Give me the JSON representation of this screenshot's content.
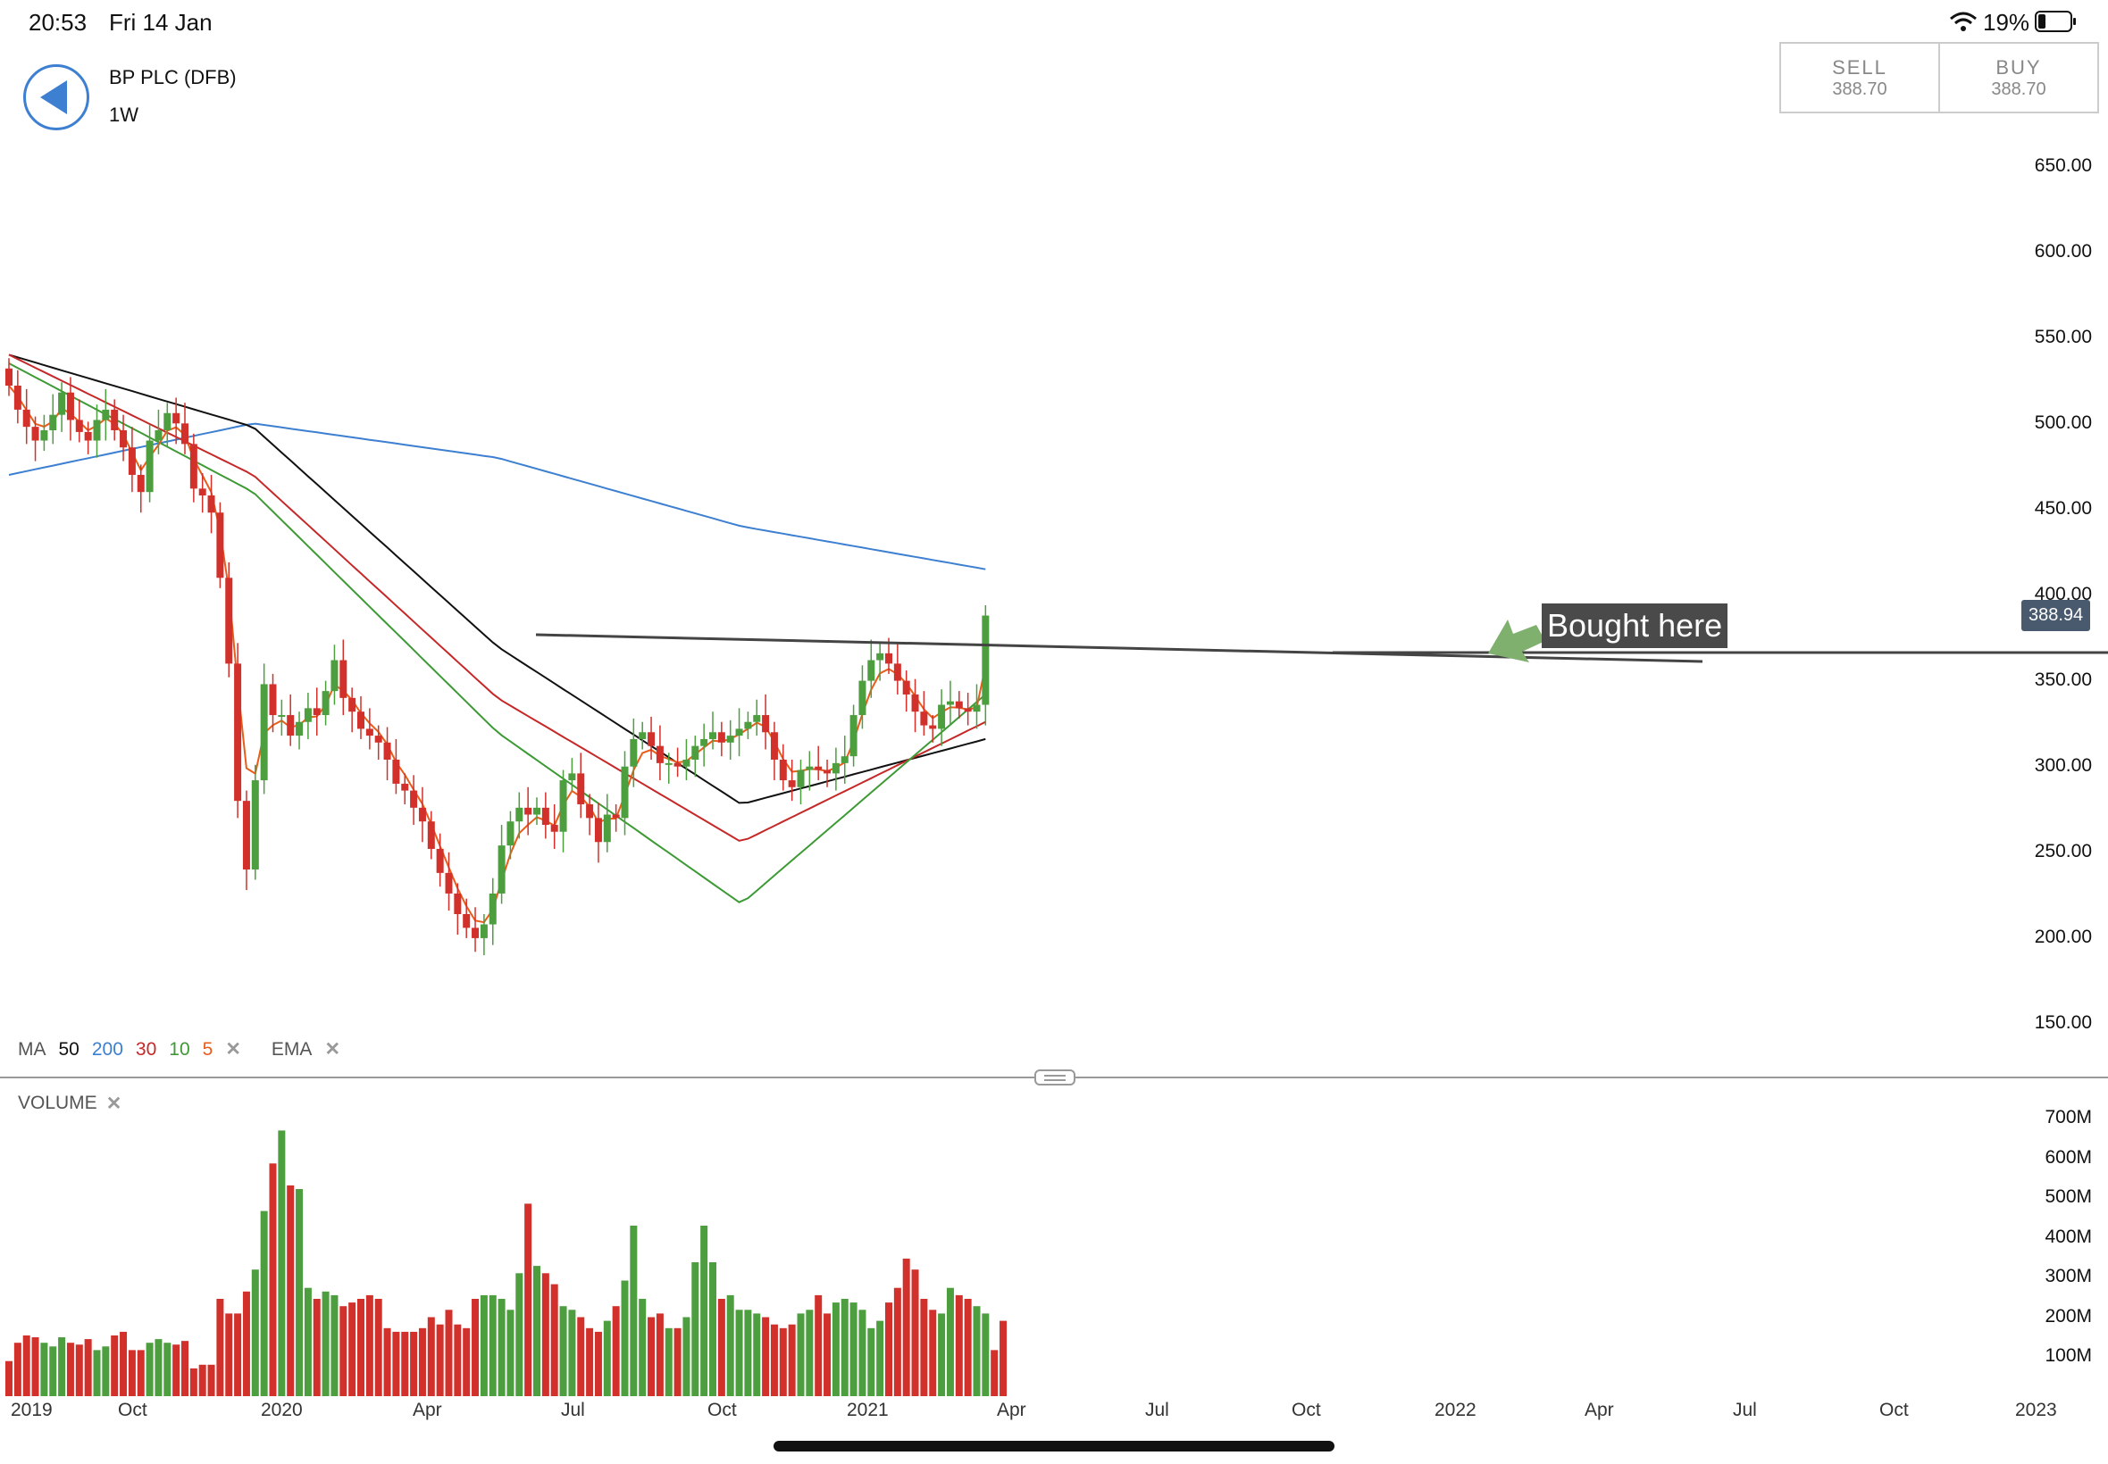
{
  "status": {
    "time": "20:53",
    "date": "Fri 14 Jan",
    "battery": "19%"
  },
  "header": {
    "instrument": "BP PLC (DFB)",
    "timeframe": "1W",
    "back_icon": "back-arrow-icon"
  },
  "trade": {
    "sell_label": "SELL",
    "sell_price": "388.70",
    "buy_label": "BUY",
    "buy_price": "388.70"
  },
  "price_axis": [
    "650.00",
    "600.00",
    "550.00",
    "500.00",
    "450.00",
    "400.00",
    "350.00",
    "300.00",
    "250.00",
    "200.00",
    "150.00"
  ],
  "current_price": "388.94",
  "annotation": "Bought here",
  "legend": {
    "ma": "MA",
    "ma_periods": [
      "50",
      "200",
      "30",
      "10",
      "5"
    ],
    "ema": "EMA"
  },
  "volume_label": "VOLUME",
  "volume_axis": [
    "700M",
    "600M",
    "500M",
    "400M",
    "300M",
    "200M",
    "100M"
  ],
  "x_axis": [
    "2019",
    "Oct",
    "2020",
    "Apr",
    "Jul",
    "Oct",
    "2021",
    "Apr",
    "Jul",
    "Oct",
    "2022",
    "Apr",
    "Jul",
    "Oct",
    "2023"
  ],
  "colors": {
    "up": "#4c9e3f",
    "down": "#d2302b",
    "ma50": "#111111",
    "ma200": "#3d7fd0",
    "ma30": "#c62828",
    "ma10": "#3d9a35",
    "ma5": "#e85d1a"
  },
  "chart_data": {
    "type": "candlestick",
    "close_prices": [
      522,
      508,
      498,
      490,
      496,
      505,
      518,
      502,
      495,
      490,
      502,
      508,
      496,
      486,
      470,
      460,
      490,
      496,
      506,
      500,
      488,
      462,
      458,
      448,
      410,
      360,
      280,
      240,
      292,
      348,
      330,
      330,
      318,
      326,
      334,
      330,
      344,
      362,
      340,
      332,
      322,
      318,
      314,
      304,
      290,
      286,
      276,
      268,
      252,
      238,
      226,
      214,
      206,
      200,
      208,
      226,
      254,
      268,
      276,
      272,
      276,
      266,
      262,
      292,
      296,
      278,
      270,
      256,
      272,
      270,
      300,
      316,
      320,
      312,
      302,
      302,
      300,
      304,
      312,
      316,
      320,
      314,
      318,
      322,
      326,
      330,
      320,
      304,
      292,
      288,
      298,
      300,
      298,
      296,
      302,
      306,
      330,
      350,
      362,
      366,
      360,
      350,
      342,
      332,
      324,
      322,
      336,
      338,
      334,
      332,
      336,
      388
    ],
    "ma_series": [
      {
        "name": "200",
        "values": [
          470,
          500,
          480,
          440,
          415
        ]
      },
      {
        "name": "50",
        "values": [
          540,
          498,
          370,
          278,
          316
        ]
      },
      {
        "name": "30",
        "values": [
          540,
          470,
          340,
          256,
          326
        ]
      },
      {
        "name": "10",
        "values": [
          535,
          460,
          320,
          220,
          342
        ]
      }
    ],
    "volume_millions": [
      30,
      80,
      100,
      95,
      80,
      70,
      95,
      80,
      75,
      90,
      60,
      70,
      100,
      110,
      60,
      60,
      80,
      90,
      80,
      75,
      85,
      10,
      20,
      20,
      200,
      160,
      160,
      220,
      280,
      440,
      570,
      660,
      510,
      500,
      230,
      200,
      220,
      210,
      180,
      190,
      200,
      210,
      200,
      120,
      110,
      110,
      110,
      120,
      150,
      130,
      170,
      130,
      120,
      200,
      210,
      210,
      200,
      170,
      270,
      460,
      290,
      270,
      240,
      180,
      170,
      150,
      120,
      110,
      140,
      180,
      250,
      400,
      200,
      150,
      160,
      120,
      120,
      150,
      300,
      400,
      300,
      200,
      210,
      170,
      170,
      160,
      150,
      130,
      120,
      130,
      160,
      170,
      210,
      160,
      190,
      200,
      190,
      170,
      120,
      140,
      190,
      230,
      310,
      280,
      200,
      170,
      160,
      230,
      210,
      200,
      180,
      160,
      60,
      140
    ],
    "ylim": [
      120,
      670
    ],
    "volume_ylim": [
      0,
      720
    ]
  }
}
